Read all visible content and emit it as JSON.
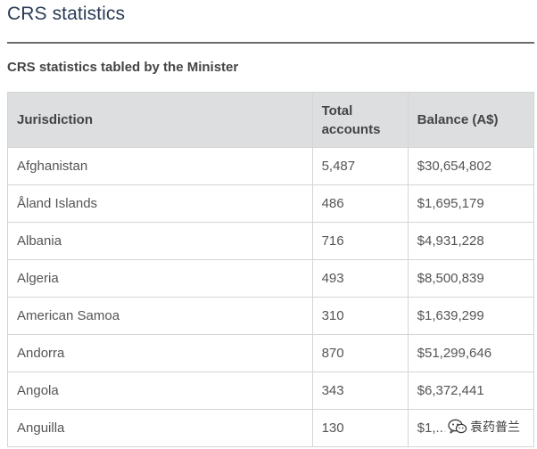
{
  "page": {
    "title": "CRS statistics"
  },
  "table": {
    "caption": "CRS statistics tabled by the Minister",
    "headers": {
      "jurisdiction": "Jurisdiction",
      "total_accounts_line1": "Total",
      "total_accounts_line2": "accounts",
      "balance": "Balance (A$)"
    },
    "rows": [
      {
        "jurisdiction": "Afghanistan",
        "total_accounts": "5,487",
        "balance": "$30,654,802"
      },
      {
        "jurisdiction": "Åland Islands",
        "total_accounts": "486",
        "balance": "$1,695,179"
      },
      {
        "jurisdiction": "Albania",
        "total_accounts": "716",
        "balance": "$4,931,228"
      },
      {
        "jurisdiction": "Algeria",
        "total_accounts": "493",
        "balance": "$8,500,839"
      },
      {
        "jurisdiction": "American Samoa",
        "total_accounts": "310",
        "balance": "$1,639,299"
      },
      {
        "jurisdiction": "Andorra",
        "total_accounts": "870",
        "balance": "$51,299,646"
      },
      {
        "jurisdiction": "Angola",
        "total_accounts": "343",
        "balance": "$6,372,441"
      },
      {
        "jurisdiction": "Anguilla",
        "total_accounts": "130",
        "balance": "$1,..."
      }
    ]
  },
  "watermark": {
    "icon": "wechat-icon",
    "text": "袁药普兰"
  },
  "colors": {
    "title": "#2a3b55",
    "header_bg": "#dcdedf",
    "border": "#d5d5d5",
    "rule": "#6b6b6b"
  }
}
